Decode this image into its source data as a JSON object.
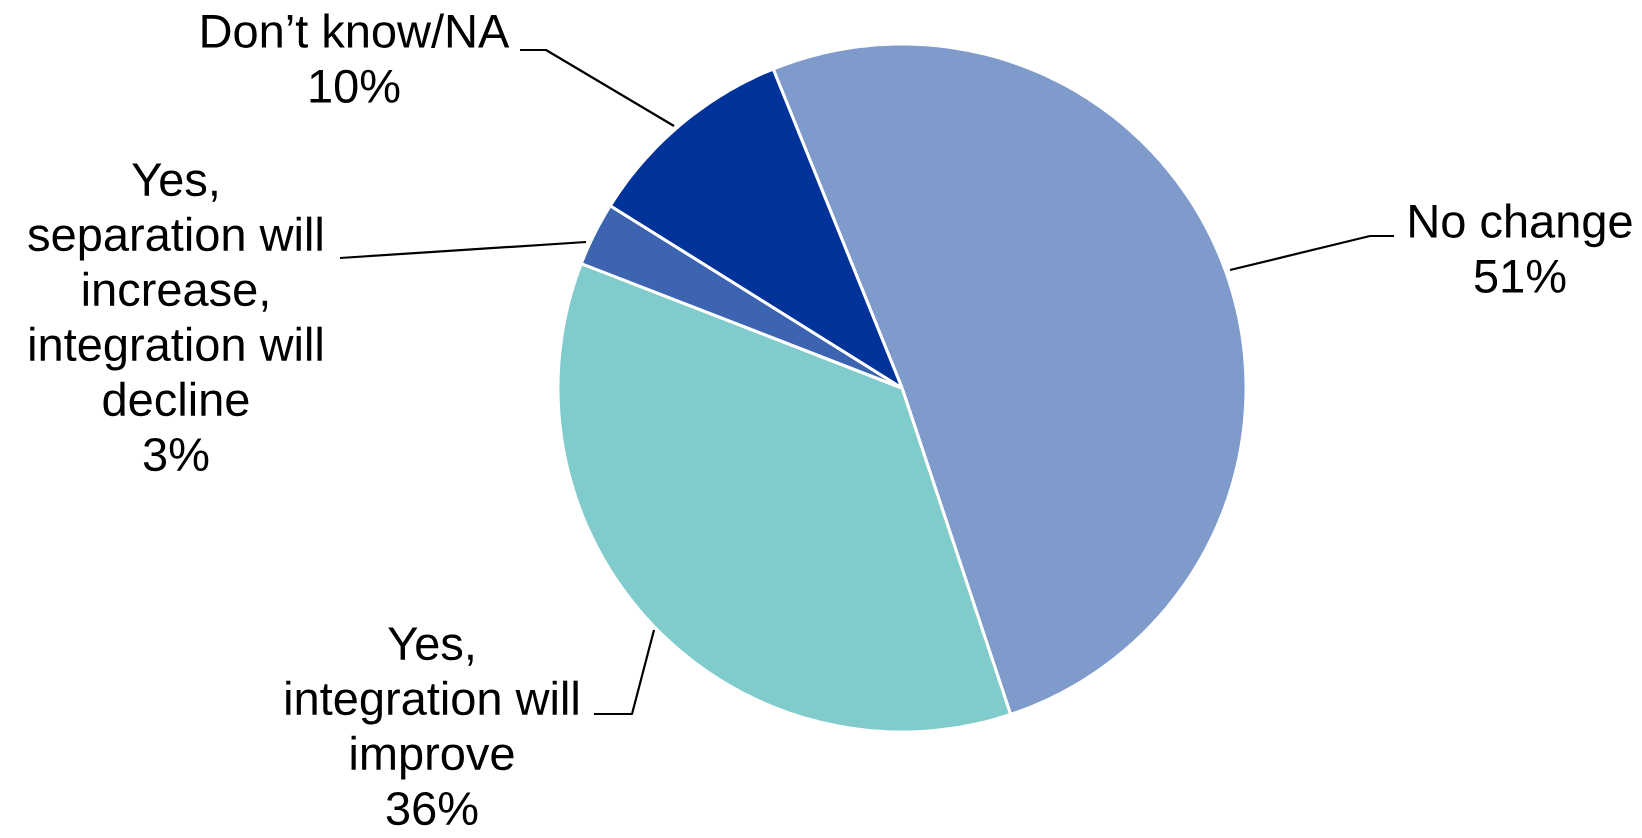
{
  "chart_data": {
    "type": "pie",
    "categories": [
      "No change",
      "Yes, integration will improve",
      "Yes, separation will increase, integration will decline",
      "Don’t know/NA"
    ],
    "values": [
      51,
      36,
      3,
      10
    ],
    "value_labels": [
      "51%",
      "36%",
      "3%",
      "10%"
    ],
    "colors": [
      "#7f9bcc",
      "#80cbcb",
      "#3c64b0",
      "#003399"
    ]
  }
}
